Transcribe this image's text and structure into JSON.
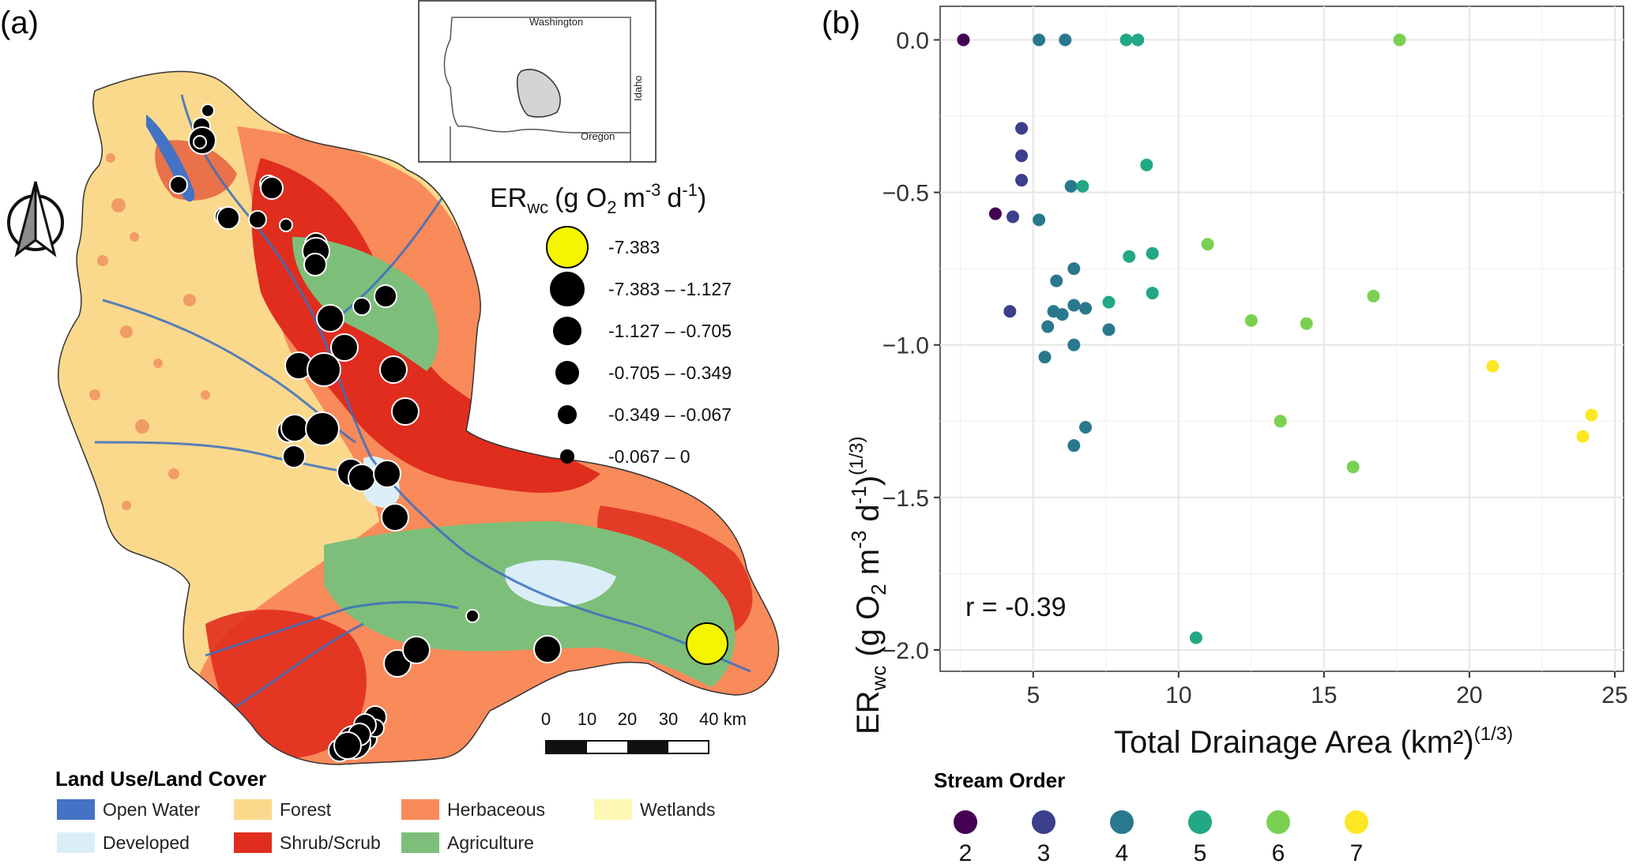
{
  "panel_a": {
    "label": "(a)",
    "inset": {
      "state_top": "Washington",
      "state_right": "Idaho",
      "state_bottom": "Oregon"
    },
    "size_legend": {
      "title_main": "ER",
      "title_sub": "wc",
      "title_rest_1": "(g O",
      "title_o2_sub": "2",
      "title_rest_2": "m",
      "title_m_exp": "-3",
      "title_rest_3": "d",
      "title_d_exp": "-1",
      "title_close": ")",
      "classes": [
        "-7.383",
        "-7.383 – -1.127",
        "-1.127 – -0.705",
        "-0.705 – -0.349",
        "-0.349 – -0.067",
        "-0.067 – 0"
      ],
      "highlight_color": "#f5f500"
    },
    "scale_bar": {
      "ticks": [
        "0",
        "10",
        "20",
        "30",
        "40 km"
      ]
    },
    "land_cover_legend": {
      "title": "Land Use/Land Cover",
      "items": [
        {
          "label": "Open Water",
          "color": "#4472c4"
        },
        {
          "label": "Forest",
          "color": "#fbd98c"
        },
        {
          "label": "Herbaceous",
          "color": "#f98a5a"
        },
        {
          "label": "Wetlands",
          "color": "#fdf8b4"
        },
        {
          "label": "Developed",
          "color": "#dbeef7"
        },
        {
          "label": "Shrub/Scrub",
          "color": "#e02d1e"
        },
        {
          "label": "Agriculture",
          "color": "#7dbf7a"
        }
      ]
    },
    "sites": [
      {
        "value_class": 5
      },
      {
        "value_class": 4
      },
      {
        "value_class": 2
      },
      {
        "value_class": 5
      },
      {
        "value_class": 4
      },
      {
        "value_class": 4
      },
      {
        "value_class": 3
      },
      {
        "value_class": 4
      },
      {
        "value_class": 3
      },
      {
        "value_class": 4
      },
      {
        "value_class": 5
      },
      {
        "value_class": 3
      },
      {
        "value_class": 2
      },
      {
        "value_class": 3
      },
      {
        "value_class": 3
      },
      {
        "value_class": 4
      },
      {
        "value_class": 2
      },
      {
        "value_class": 2
      },
      {
        "value_class": 2
      },
      {
        "value_class": 1
      },
      {
        "value_class": 2
      },
      {
        "value_class": 2
      },
      {
        "value_class": 3
      },
      {
        "value_class": 2
      },
      {
        "value_class": 1
      },
      {
        "value_class": 3
      },
      {
        "value_class": 2
      },
      {
        "value_class": 2
      },
      {
        "value_class": 2
      },
      {
        "value_class": 2
      },
      {
        "value_class": 5
      },
      {
        "value_class": 2
      },
      {
        "value_class": 0
      },
      {
        "value_class": 2
      },
      {
        "value_class": 2
      },
      {
        "value_class": 3
      },
      {
        "value_class": 3
      },
      {
        "value_class": 1
      },
      {
        "value_class": 3
      },
      {
        "value_class": 4
      },
      {
        "value_class": 3
      },
      {
        "value_class": 3
      },
      {
        "value_class": 2
      }
    ]
  },
  "chart_data": {
    "type": "scatter",
    "panel_label": "(b)",
    "xlabel": "Total Drainage Area (km²)",
    "xlabel_exp": "(1/3)",
    "ylabel_main": "ER",
    "ylabel_sub": "wc",
    "ylabel_p1": " (g O",
    "ylabel_o2_sub": "2",
    "ylabel_p2": " m",
    "ylabel_m_exp": "-3",
    "ylabel_p3": " d",
    "ylabel_d_exp": "-1",
    "ylabel_p4": ")",
    "ylabel_exp": "(1/3)",
    "xlim": [
      1.8,
      25.3
    ],
    "ylim": [
      -2.07,
      0.11
    ],
    "x_ticks": [
      5,
      10,
      15,
      20,
      25
    ],
    "y_ticks": [
      0.0,
      -0.5,
      -1.0,
      -1.5,
      -2.0
    ],
    "y_tick_labels": [
      "0.0",
      "−0.5",
      "−1.0",
      "−1.5",
      "−2.0"
    ],
    "grid": true,
    "annotation": "r = -0.39",
    "legend": {
      "title": "Stream Order",
      "position": "bottom-left",
      "entries": [
        {
          "label": "2",
          "color": "#440154"
        },
        {
          "label": "3",
          "color": "#3b3f8c"
        },
        {
          "label": "4",
          "color": "#2a788e"
        },
        {
          "label": "5",
          "color": "#22a884"
        },
        {
          "label": "6",
          "color": "#7ad151"
        },
        {
          "label": "7",
          "color": "#fde725"
        }
      ]
    },
    "points": [
      {
        "x": 2.6,
        "y": 0.0,
        "order": "2"
      },
      {
        "x": 5.2,
        "y": 0.0,
        "order": "4"
      },
      {
        "x": 6.1,
        "y": 0.0,
        "order": "4"
      },
      {
        "x": 8.2,
        "y": 0.0,
        "order": "5"
      },
      {
        "x": 8.6,
        "y": 0.0,
        "order": "5"
      },
      {
        "x": 17.6,
        "y": 0.0,
        "order": "6"
      },
      {
        "x": 4.6,
        "y": -0.29,
        "order": "3"
      },
      {
        "x": 4.6,
        "y": -0.38,
        "order": "3"
      },
      {
        "x": 4.6,
        "y": -0.46,
        "order": "3"
      },
      {
        "x": 8.9,
        "y": -0.41,
        "order": "5"
      },
      {
        "x": 6.3,
        "y": -0.48,
        "order": "4"
      },
      {
        "x": 6.7,
        "y": -0.48,
        "order": "5"
      },
      {
        "x": 3.7,
        "y": -0.57,
        "order": "2"
      },
      {
        "x": 4.3,
        "y": -0.58,
        "order": "3"
      },
      {
        "x": 5.2,
        "y": -0.59,
        "order": "4"
      },
      {
        "x": 8.3,
        "y": -0.71,
        "order": "5"
      },
      {
        "x": 9.1,
        "y": -0.7,
        "order": "5"
      },
      {
        "x": 11.0,
        "y": -0.67,
        "order": "6"
      },
      {
        "x": 6.4,
        "y": -0.75,
        "order": "4"
      },
      {
        "x": 5.8,
        "y": -0.79,
        "order": "4"
      },
      {
        "x": 4.2,
        "y": -0.89,
        "order": "3"
      },
      {
        "x": 5.7,
        "y": -0.89,
        "order": "4"
      },
      {
        "x": 6.0,
        "y": -0.9,
        "order": "4"
      },
      {
        "x": 6.4,
        "y": -0.87,
        "order": "4"
      },
      {
        "x": 6.8,
        "y": -0.88,
        "order": "4"
      },
      {
        "x": 7.6,
        "y": -0.86,
        "order": "5"
      },
      {
        "x": 9.1,
        "y": -0.83,
        "order": "5"
      },
      {
        "x": 5.5,
        "y": -0.94,
        "order": "4"
      },
      {
        "x": 6.4,
        "y": -1.0,
        "order": "4"
      },
      {
        "x": 7.6,
        "y": -0.95,
        "order": "4"
      },
      {
        "x": 5.4,
        "y": -1.04,
        "order": "4"
      },
      {
        "x": 12.5,
        "y": -0.92,
        "order": "6"
      },
      {
        "x": 14.4,
        "y": -0.93,
        "order": "6"
      },
      {
        "x": 16.7,
        "y": -0.84,
        "order": "6"
      },
      {
        "x": 20.8,
        "y": -1.07,
        "order": "7"
      },
      {
        "x": 24.2,
        "y": -1.23,
        "order": "7"
      },
      {
        "x": 23.9,
        "y": -1.3,
        "order": "7"
      },
      {
        "x": 13.5,
        "y": -1.25,
        "order": "6"
      },
      {
        "x": 6.8,
        "y": -1.27,
        "order": "4"
      },
      {
        "x": 6.4,
        "y": -1.33,
        "order": "4"
      },
      {
        "x": 16.0,
        "y": -1.4,
        "order": "6"
      },
      {
        "x": 10.6,
        "y": -1.96,
        "order": "5"
      }
    ]
  }
}
